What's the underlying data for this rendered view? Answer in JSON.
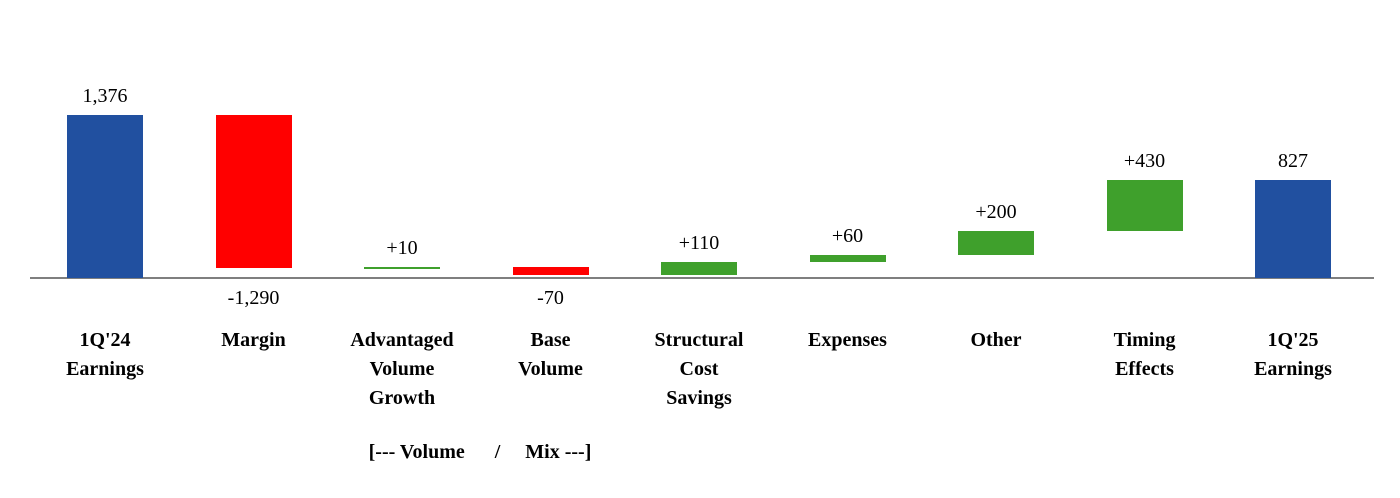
{
  "chart_data": {
    "type": "bar",
    "variant": "waterfall",
    "title": "",
    "xlabel": "",
    "ylabel": "",
    "ylim": [
      0,
      1400
    ],
    "grid": false,
    "legend": false,
    "categories": [
      "1Q'24\nEarnings",
      "Margin",
      "Advantaged\nVolume\nGrowth",
      "Base\nVolume",
      "Structural\nCost\nSavings",
      "Expenses",
      "Other",
      "Timing\nEffects",
      "1Q'25\nEarnings"
    ],
    "values": [
      1376,
      -1290,
      10,
      -70,
      110,
      60,
      200,
      430,
      827
    ],
    "labels": [
      "1,376",
      "-1,290",
      "+10",
      "-70",
      "+110",
      "+60",
      "+200",
      "+430",
      "827"
    ],
    "bar_types": [
      "total",
      "delta",
      "delta",
      "delta",
      "delta",
      "delta",
      "delta",
      "delta",
      "total"
    ],
    "colors": {
      "total": "#2150A0",
      "increase": "#3fa02c",
      "decrease": "#ff0000",
      "axis": "#7f7f7f"
    },
    "annotation": "[--- Volume      /     Mix ---]"
  }
}
